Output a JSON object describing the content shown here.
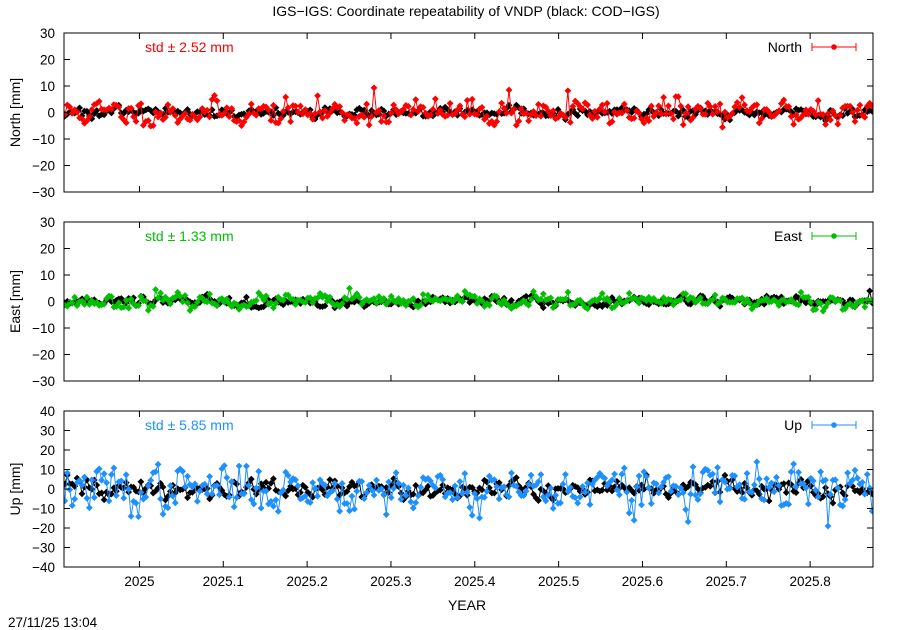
{
  "chart": {
    "title": "IGS−IGS: Coordinate repeatability of VNDP (black: COD−IGS)",
    "xlabel": "YEAR",
    "timestamp": "27/11/25 13:04",
    "reference_color": "#000000"
  },
  "chart_data": [
    {
      "type": "line",
      "panel": "North",
      "ylabel": "North [mm]",
      "legend": "North",
      "legend_position": "top-right",
      "std_label": "std ± 2.52 mm",
      "color": "#ff0000",
      "xlim": [
        2024.91,
        2025.875
      ],
      "ylim": [
        -30,
        30
      ],
      "yticks": [
        -30,
        -20,
        -10,
        0,
        10,
        20,
        30
      ],
      "ytick_labels": [
        "−30",
        "−20",
        "−10",
        "0",
        "10",
        "20",
        "30"
      ],
      "grid": false,
      "series": [
        {
          "name": "North",
          "color": "#ff0000",
          "amplitude_std": 2.52,
          "spikes": [
            [
              2025.28,
              9.3
            ],
            [
              2025.44,
              8.5
            ],
            [
              2025.51,
              8.2
            ],
            [
              2025.64,
              6.0
            ],
            [
              2025.81,
              4.5
            ]
          ]
        },
        {
          "color": "#000000",
          "amplitude_std": 1.0
        }
      ]
    },
    {
      "type": "line",
      "panel": "East",
      "ylabel": "East [mm]",
      "legend": "East",
      "legend_position": "top-right",
      "std_label": "std ± 1.33 mm",
      "color": "#00c000",
      "xlim": [
        2024.91,
        2025.875
      ],
      "ylim": [
        -30,
        30
      ],
      "yticks": [
        -30,
        -20,
        -10,
        0,
        10,
        20,
        30
      ],
      "ytick_labels": [
        "−30",
        "−20",
        "−10",
        "0",
        "10",
        "20",
        "30"
      ],
      "grid": false,
      "series": [
        {
          "name": "East",
          "color": "#00c000",
          "amplitude_std": 1.33,
          "spikes": [
            [
              2025.02,
              4.5
            ],
            [
              2025.25,
              5.0
            ],
            [
              2025.47,
              3.8
            ],
            [
              2025.79,
              3.5
            ]
          ]
        },
        {
          "color": "#000000",
          "amplitude_std": 1.0,
          "spikes": [
            [
              2025.87,
              4.0
            ]
          ]
        }
      ]
    },
    {
      "type": "line",
      "panel": "Up",
      "ylabel": "Up [mm]",
      "legend": "Up",
      "legend_position": "top-right",
      "std_label": "std ± 5.85 mm",
      "color": "#1e90ff",
      "xlim": [
        2024.91,
        2025.875
      ],
      "ylim": [
        -40,
        40
      ],
      "yticks": [
        -40,
        -30,
        -20,
        -10,
        0,
        10,
        20,
        30,
        40
      ],
      "ytick_labels": [
        "−40",
        "−30",
        "−20",
        "−10",
        "0",
        "10",
        "20",
        "30",
        "40"
      ],
      "grid": false,
      "series": [
        {
          "name": "Up",
          "color": "#1e90ff",
          "amplitude_std": 5.85,
          "spikes": [
            [
              2025.1,
              12.0
            ],
            [
              2025.69,
              11.0
            ],
            [
              2025.82,
              -19.0
            ],
            [
              2025.59,
              -16.0
            ],
            [
              2024.99,
              -14.0
            ]
          ]
        },
        {
          "color": "#000000",
          "amplitude_std": 2.5
        }
      ]
    }
  ],
  "x_axis": {
    "ticks": [
      2025.0,
      2025.1,
      2025.2,
      2025.3,
      2025.4,
      2025.5,
      2025.6,
      2025.7,
      2025.8
    ],
    "tick_labels": [
      "2025",
      "2025.1",
      "2025.2",
      "2025.3",
      "2025.4",
      "2025.5",
      "2025.6",
      "2025.7",
      "2025.8"
    ]
  }
}
